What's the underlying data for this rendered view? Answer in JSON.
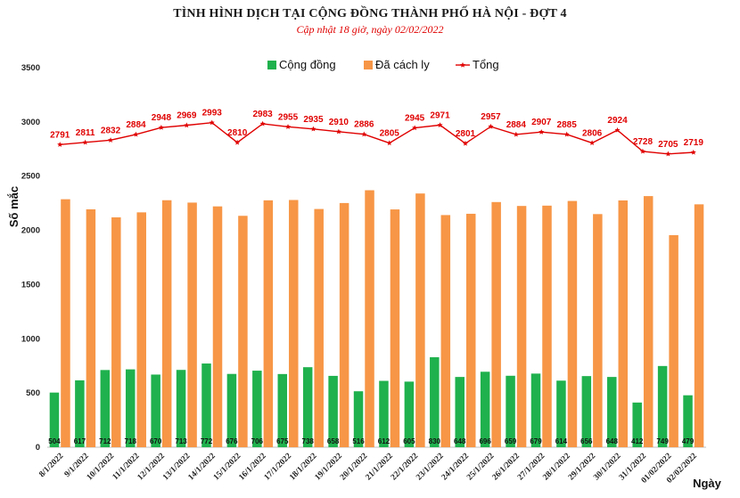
{
  "chart_data": {
    "type": "bar",
    "title": "TÌNH HÌNH DỊCH TẠI CỘNG ĐỒNG THÀNH PHỐ HÀ NỘI - ĐỢT 4",
    "subtitle": "Cập nhật 18 giờ, ngày 02/02/2022",
    "ylabel": "Số mắc",
    "xlabel": "Ngày",
    "ylim": [
      0,
      3500
    ],
    "yticks": [
      0,
      500,
      1000,
      1500,
      2000,
      2500,
      3000,
      3500
    ],
    "categories": [
      "8/1/2022",
      "9/1/2022",
      "10/1/2022",
      "11/1/2022",
      "12/1/2022",
      "13/1/2022",
      "14/1/2022",
      "15/1/2022",
      "16/1/2022",
      "17/1/2022",
      "18/1/2022",
      "19/1/2022",
      "20/1/2022",
      "21/1/2022",
      "22/1/2022",
      "23/1/2022",
      "24/1/2022",
      "25/1/2022",
      "26/1/2022",
      "27/1/2022",
      "28/1/2022",
      "29/1/2022",
      "30/1/2022",
      "31/1/2022",
      "01/02/2022",
      "02/02/2022"
    ],
    "series": [
      {
        "name": "Cộng đồng",
        "type": "bar",
        "color": "#1fb14d",
        "values": [
          504,
          617,
          712,
          718,
          670,
          713,
          772,
          676,
          706,
          675,
          738,
          658,
          516,
          612,
          605,
          830,
          648,
          696,
          659,
          679,
          614,
          656,
          648,
          412,
          749,
          479
        ]
      },
      {
        "name": "Đã cách ly",
        "type": "bar",
        "color": "#f79646",
        "values": [
          2287,
          2194,
          2120,
          2166,
          2278,
          2256,
          2221,
          2134,
          2277,
          2280,
          2197,
          2252,
          2370,
          2193,
          2340,
          2141,
          2153,
          2261,
          2225,
          2228,
          2271,
          2150,
          2276,
          2316,
          1956,
          2240
        ]
      },
      {
        "name": "Tổng",
        "type": "line",
        "color": "#e00000",
        "values": [
          2791,
          2811,
          2832,
          2884,
          2948,
          2969,
          2993,
          2810,
          2983,
          2955,
          2935,
          2910,
          2886,
          2805,
          2945,
          2971,
          2801,
          2957,
          2884,
          2907,
          2885,
          2806,
          2924,
          2728,
          2705,
          2719
        ]
      }
    ],
    "legend_position": "top"
  }
}
